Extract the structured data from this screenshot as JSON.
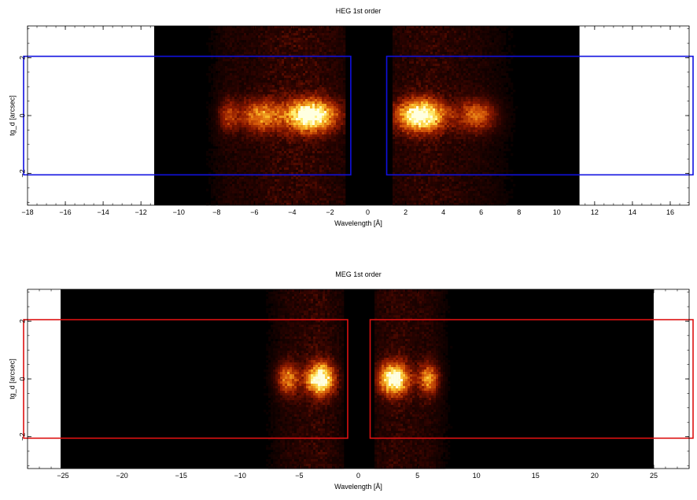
{
  "chart_data": [
    {
      "type": "heatmap",
      "title": "HEG 1st order",
      "xlabel": "Wavelength [Å]",
      "ylabel": "tg_d [arcsec]",
      "xlim": [
        -18,
        17
      ],
      "ylim": [
        -3.1,
        3.1
      ],
      "x_ticks": [
        -18,
        -16,
        -14,
        -12,
        -10,
        -8,
        -6,
        -4,
        -2,
        0,
        2,
        4,
        6,
        8,
        10,
        12,
        14,
        16
      ],
      "y_ticks": [
        -2,
        0,
        2
      ],
      "image_extent_x": [
        -11.3,
        11.2
      ],
      "gap_x": [
        -0.9,
        1.0
      ],
      "box_color": "#1010e0",
      "extraction_regions": [
        {
          "x": [
            -20,
            -0.9
          ],
          "y": [
            -2.05,
            2.05
          ]
        },
        {
          "x": [
            1.0,
            20
          ],
          "y": [
            -2.05,
            2.05
          ]
        }
      ],
      "emission_blobs": [
        {
          "center": -3.0,
          "width": 3.2,
          "intensity": 1.0
        },
        {
          "center": -5.7,
          "width": 2.6,
          "intensity": 0.55
        },
        {
          "center": -7.4,
          "width": 1.2,
          "intensity": 0.35
        },
        {
          "center": 2.8,
          "width": 3.0,
          "intensity": 1.0
        },
        {
          "center": 5.8,
          "width": 2.4,
          "intensity": 0.5
        }
      ]
    },
    {
      "type": "heatmap",
      "title": "MEG 1st order",
      "xlabel": "Wavelength [Å]",
      "ylabel": "tg_d [arcsec]",
      "xlim": [
        -28,
        28
      ],
      "ylim": [
        -3.1,
        3.1
      ],
      "x_ticks": [
        -25,
        -20,
        -15,
        -10,
        -5,
        0,
        5,
        10,
        15,
        20,
        25
      ],
      "y_ticks": [
        -2,
        0,
        2
      ],
      "image_extent_x": [
        -25.2,
        25.0
      ],
      "gap_x": [
        -0.9,
        1.0
      ],
      "box_color": "#dd1111",
      "extraction_regions": [
        {
          "x": [
            -30,
            -0.9
          ],
          "y": [
            -2.05,
            2.05
          ]
        },
        {
          "x": [
            1.0,
            30
          ],
          "y": [
            -2.05,
            2.05
          ]
        }
      ],
      "emission_blobs": [
        {
          "center": -3.2,
          "width": 2.8,
          "intensity": 1.0
        },
        {
          "center": -6.0,
          "width": 2.2,
          "intensity": 0.55
        },
        {
          "center": 3.0,
          "width": 3.0,
          "intensity": 1.0
        },
        {
          "center": 6.0,
          "width": 2.0,
          "intensity": 0.6
        }
      ]
    }
  ]
}
